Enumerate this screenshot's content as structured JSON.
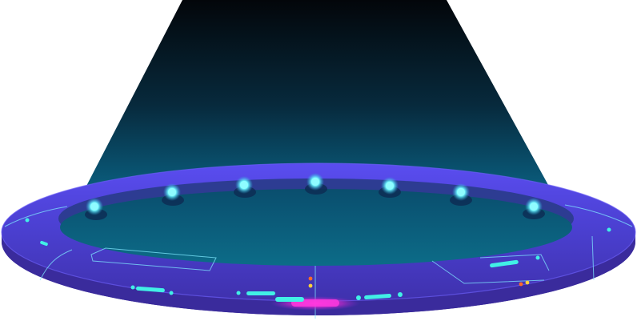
{
  "scene": {
    "subject": "holographic-portal-ring",
    "colors": {
      "background": "#ffffff",
      "beam_top": "#03060a",
      "beam_bottom": "#0a5f80",
      "ring_top": "#4b45d8",
      "ring_rim": "#3a33b5",
      "ring_side": "#3f2fa6",
      "inner_well": "#0b6a86",
      "inner_wall": "#2c3b8f",
      "light_glow": "#5ff5ff",
      "accent_cyan": "#41f0e6",
      "accent_magenta": "#ff2bd8",
      "accent_orange": "#ff6a2a",
      "accent_yellow": "#ffd13b",
      "panel_line": "#7fe8ff"
    },
    "lights_count": 7
  }
}
